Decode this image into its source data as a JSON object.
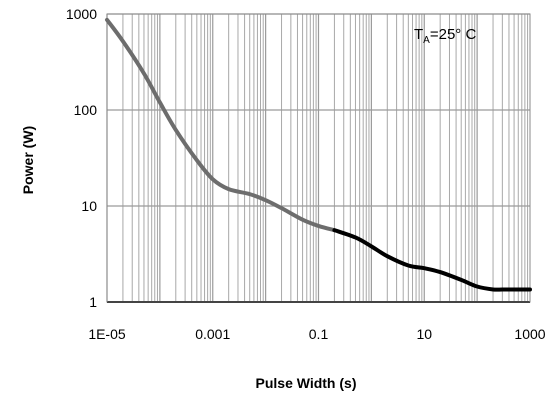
{
  "chart_data": {
    "type": "line",
    "xlabel": "Pulse Width (s)",
    "ylabel": "Power (W)",
    "x_scale": "log",
    "y_scale": "log",
    "xlim": [
      1e-05,
      1000
    ],
    "ylim": [
      1,
      1000
    ],
    "grid": true,
    "x_ticks": [
      1e-05,
      0.001,
      0.1,
      10,
      1000
    ],
    "x_tick_labels": [
      "1E-05",
      "0.001",
      "0.1",
      "10",
      "1000"
    ],
    "y_ticks": [
      1,
      10,
      100,
      1000
    ],
    "y_tick_labels": [
      "1",
      "10",
      "100",
      "1000"
    ],
    "annotation": {
      "main": "T",
      "sub": "A",
      "rest": "=25° C"
    },
    "series": [
      {
        "color": "#6d6d6d",
        "x": [
          1e-05,
          2e-05,
          5e-05,
          0.0001,
          0.0002,
          0.0005,
          0.001,
          0.002,
          0.005,
          0.01,
          0.02,
          0.05,
          0.1,
          0.2
        ],
        "y": [
          870,
          520,
          240,
          120,
          62,
          30,
          19,
          15,
          13.3,
          11.5,
          9.5,
          7.2,
          6.2,
          5.6
        ]
      },
      {
        "color": "#000000",
        "x": [
          0.2,
          0.5,
          1,
          2,
          5,
          10,
          20,
          50,
          100,
          200,
          300,
          500,
          1000
        ],
        "y": [
          5.6,
          4.7,
          3.8,
          3.0,
          2.4,
          2.25,
          2.05,
          1.7,
          1.45,
          1.35,
          1.35,
          1.35,
          1.35
        ]
      }
    ]
  }
}
